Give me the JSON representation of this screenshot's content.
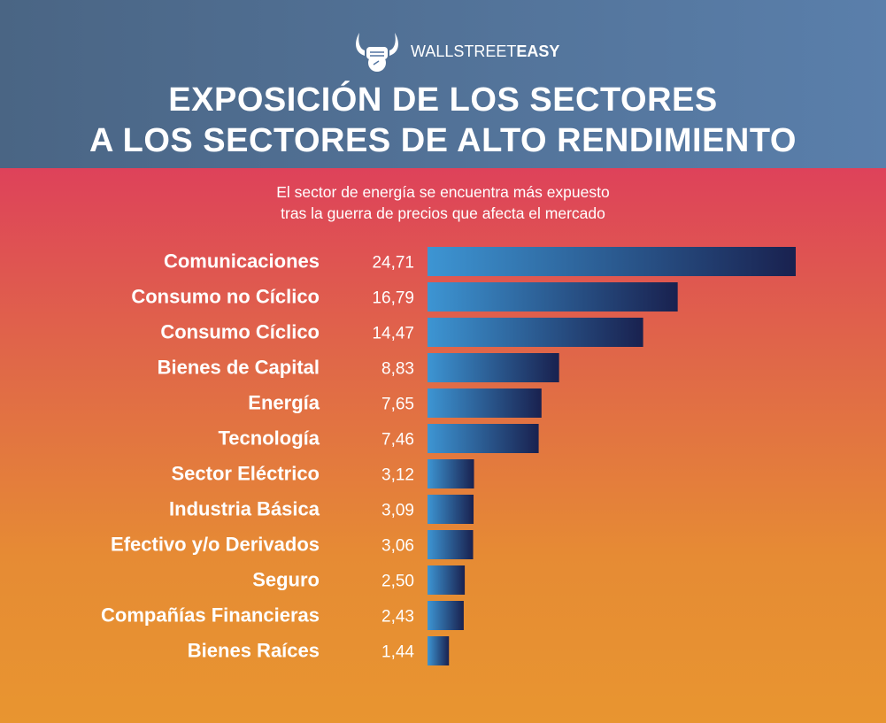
{
  "brand": {
    "name_light": "WALLSTREET",
    "name_bold": "EASY",
    "icon": "horned-fist-icon"
  },
  "title_lines": [
    "EXPOSICIÓN DE LOS SECTORES",
    "A LOS SECTORES DE ALTO RENDIMIENTO"
  ],
  "subtitle_lines": [
    "El sector de energía se encuentra más expuesto",
    "tras la guerra de precios que afecta el mercado"
  ],
  "colors": {
    "bar_start": "#3d95d3",
    "bar_end": "#19214f",
    "header": "#5274a0",
    "bg_top": "#de425a",
    "bg_bottom": "#e89530"
  },
  "chart_data": {
    "type": "bar",
    "orientation": "horizontal",
    "title": "EXPOSICIÓN DE LOS SECTORES A LOS SECTORES DE ALTO RENDIMIENTO",
    "subtitle": "El sector de energía se encuentra más expuesto tras la guerra de precios que afecta el mercado",
    "categories": [
      "Comunicaciones",
      "Consumo no Cíclico",
      "Consumo Cíclico",
      "Bienes de Capital",
      "Energía",
      "Tecnología",
      "Sector Eléctrico",
      "Industria Básica",
      "Efectivo y/o Derivados",
      "Seguro",
      "Compañías Financieras",
      "Bienes Raíces"
    ],
    "values": [
      24.71,
      16.79,
      14.47,
      8.83,
      7.65,
      7.46,
      3.12,
      3.09,
      3.06,
      2.5,
      2.43,
      1.44
    ],
    "value_labels": [
      "24,71",
      "16,79",
      "14,47",
      "8,83",
      "7,65",
      "7,46",
      "3,12",
      "3,09",
      "3,06",
      "2,50",
      "2,43",
      "1,44"
    ],
    "xlabel": "",
    "ylabel": "",
    "xlim": [
      0,
      24.71
    ],
    "grid": false,
    "legend": "none"
  }
}
